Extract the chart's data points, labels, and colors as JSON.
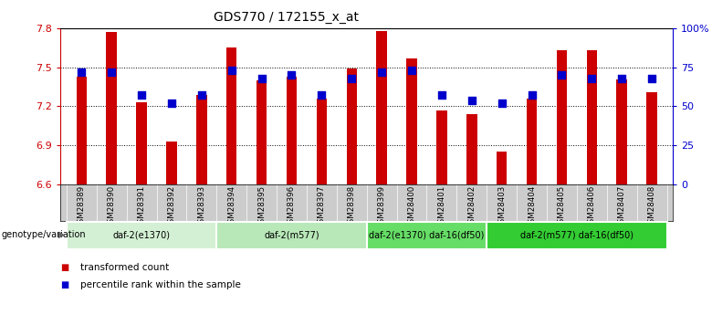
{
  "title": "GDS770 / 172155_x_at",
  "samples": [
    "GSM28389",
    "GSM28390",
    "GSM28391",
    "GSM28392",
    "GSM28393",
    "GSM28394",
    "GSM28395",
    "GSM28396",
    "GSM28397",
    "GSM28398",
    "GSM28399",
    "GSM28400",
    "GSM28401",
    "GSM28402",
    "GSM28403",
    "GSM28404",
    "GSM28405",
    "GSM28406",
    "GSM28407",
    "GSM28408"
  ],
  "red_values": [
    7.43,
    7.77,
    7.23,
    6.93,
    7.29,
    7.65,
    7.4,
    7.43,
    7.26,
    7.49,
    7.78,
    7.57,
    7.17,
    7.14,
    6.85,
    7.26,
    7.63,
    7.63,
    7.41,
    7.31
  ],
  "blue_values": [
    72,
    72,
    57,
    52,
    57,
    73,
    68,
    70,
    57,
    68,
    72,
    73,
    57,
    54,
    52,
    57,
    70,
    68,
    68,
    68
  ],
  "ylim_left": [
    6.6,
    7.8
  ],
  "ylim_right": [
    0,
    100
  ],
  "yticks_left": [
    6.6,
    6.9,
    7.2,
    7.5,
    7.8
  ],
  "yticks_right": [
    0,
    25,
    50,
    75,
    100
  ],
  "ytick_labels_right": [
    "0",
    "25",
    "50",
    "75",
    "100%"
  ],
  "groups": [
    {
      "label": "daf-2(e1370)",
      "start": 0,
      "end": 5,
      "color": "#d4f0d4"
    },
    {
      "label": "daf-2(m577)",
      "start": 5,
      "end": 10,
      "color": "#b8e8b8"
    },
    {
      "label": "daf-2(e1370) daf-16(df50)",
      "start": 10,
      "end": 14,
      "color": "#66dd66"
    },
    {
      "label": "daf-2(m577) daf-16(df50)",
      "start": 14,
      "end": 20,
      "color": "#33cc33"
    }
  ],
  "bar_color": "#cc0000",
  "dot_color": "#0000cc",
  "grid_color": "#888888",
  "bar_width": 0.35,
  "dot_size": 28,
  "background_color": "#ffffff",
  "tick_area_color": "#cccccc",
  "genotype_label": "genotype/variation",
  "legend_items": [
    {
      "color": "#cc0000",
      "label": "transformed count"
    },
    {
      "color": "#0000cc",
      "label": "percentile rank within the sample"
    }
  ]
}
